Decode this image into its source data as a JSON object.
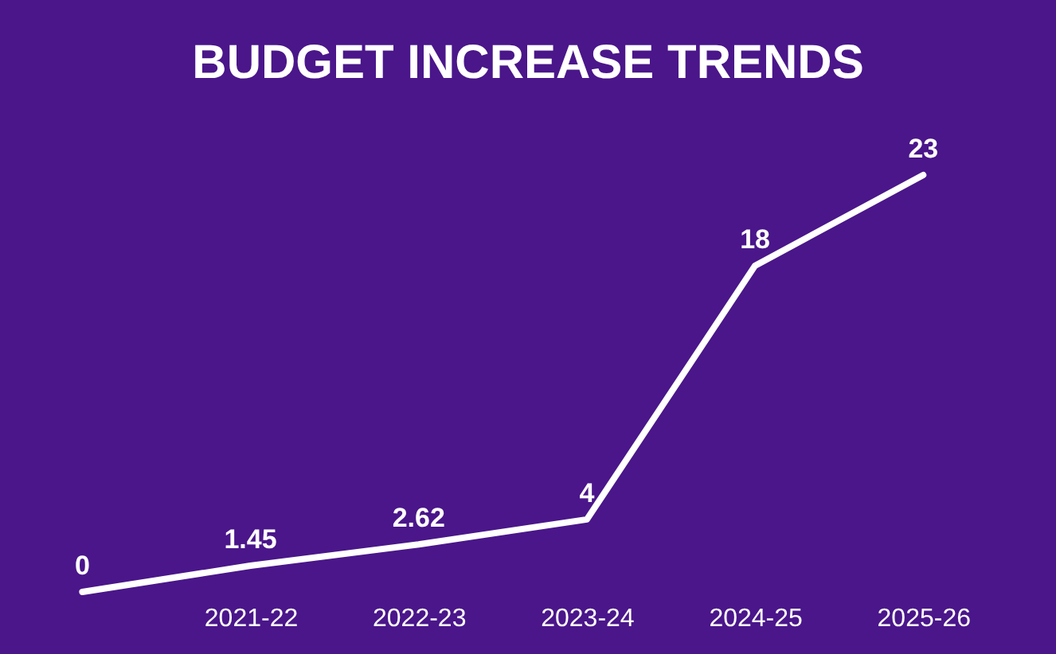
{
  "chart_data": {
    "type": "line",
    "title": "BUDGET INCREASE TRENDS",
    "categories": [
      null,
      "2021-22",
      "2022-23",
      "2023-24",
      "2024-25",
      "2025-26"
    ],
    "series": [
      {
        "color": "#ffffff",
        "values": [
          0,
          1.45,
          2.62,
          4,
          18,
          23
        ]
      }
    ],
    "data_labels": true,
    "grid": false,
    "marker": "none",
    "line_style": "solid"
  }
}
